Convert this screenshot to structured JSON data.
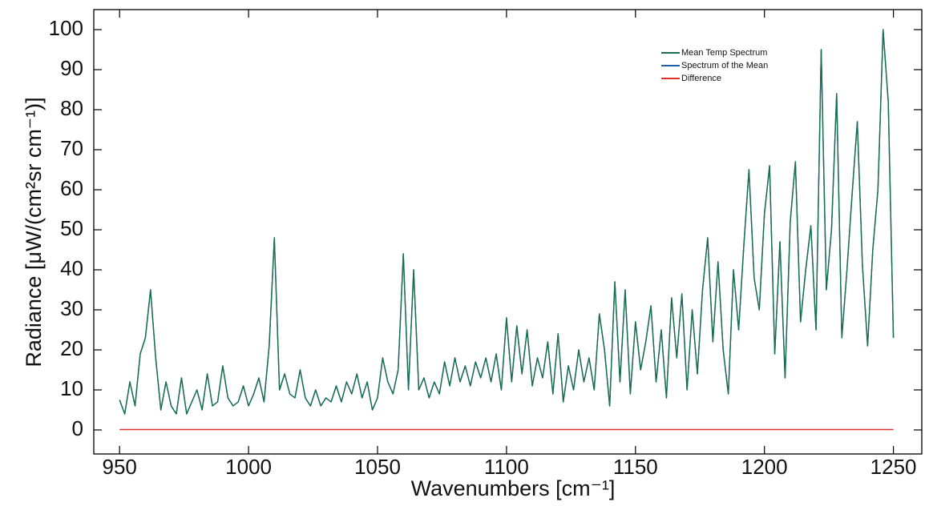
{
  "chart_data": {
    "type": "line",
    "xlabel": "Wavenumbers [cm⁻¹]",
    "ylabel": "Radiance [μW/(cm²sr cm⁻¹)]",
    "xlim": [
      940,
      1261
    ],
    "ylim": [
      -6,
      105
    ],
    "xticks": [
      950,
      1000,
      1050,
      1100,
      1150,
      1200,
      1250
    ],
    "yticks": [
      0,
      10,
      20,
      30,
      40,
      50,
      60,
      70,
      80,
      90,
      100
    ],
    "legend": "upper right",
    "x": [
      950,
      952,
      954,
      956,
      958,
      960,
      962,
      964,
      966,
      968,
      970,
      972,
      974,
      976,
      978,
      980,
      982,
      984,
      986,
      988,
      990,
      992,
      994,
      996,
      998,
      1000,
      1002,
      1004,
      1006,
      1008,
      1010,
      1012,
      1014,
      1016,
      1018,
      1020,
      1022,
      1024,
      1026,
      1028,
      1030,
      1032,
      1034,
      1036,
      1038,
      1040,
      1042,
      1044,
      1046,
      1048,
      1050,
      1052,
      1054,
      1056,
      1058,
      1060,
      1062,
      1064,
      1066,
      1068,
      1070,
      1072,
      1074,
      1076,
      1078,
      1080,
      1082,
      1084,
      1086,
      1088,
      1090,
      1092,
      1094,
      1096,
      1098,
      1100,
      1102,
      1104,
      1106,
      1108,
      1110,
      1112,
      1114,
      1116,
      1118,
      1120,
      1122,
      1124,
      1126,
      1128,
      1130,
      1132,
      1134,
      1136,
      1138,
      1140,
      1142,
      1144,
      1146,
      1148,
      1150,
      1152,
      1154,
      1156,
      1158,
      1160,
      1162,
      1164,
      1166,
      1168,
      1170,
      1172,
      1174,
      1176,
      1178,
      1180,
      1182,
      1184,
      1186,
      1188,
      1190,
      1192,
      1194,
      1196,
      1198,
      1200,
      1202,
      1204,
      1206,
      1208,
      1210,
      1212,
      1214,
      1216,
      1218,
      1220,
      1222,
      1224,
      1226,
      1228,
      1230,
      1232,
      1234,
      1236,
      1238,
      1240,
      1242,
      1244,
      1246,
      1248,
      1250
    ],
    "series": [
      {
        "name": "Mean Temp Spectrum",
        "color": "#1a6e4e",
        "values": [
          7.5,
          4,
          12,
          6,
          19,
          23,
          35,
          18,
          5,
          12,
          6,
          4,
          13,
          4,
          7,
          10,
          5,
          14,
          6,
          7,
          16,
          8,
          6,
          7,
          11,
          6,
          9,
          13,
          7,
          21,
          48,
          10,
          14,
          9,
          8,
          15,
          8,
          6,
          10,
          6,
          8,
          7,
          11,
          7,
          12,
          9,
          14,
          8,
          12,
          5,
          8,
          18,
          12,
          9,
          15,
          44,
          10,
          40,
          10,
          13,
          8,
          12,
          9,
          17,
          11,
          18,
          12,
          16,
          11,
          17,
          13,
          18,
          12,
          19,
          10,
          28,
          12,
          26,
          14,
          25,
          11,
          18,
          13,
          22,
          9,
          24,
          7,
          16,
          10,
          20,
          12,
          18,
          10,
          29,
          20,
          6,
          37,
          12,
          35,
          9,
          27,
          15,
          22,
          31,
          12,
          25,
          8,
          33,
          18,
          34,
          10,
          30,
          14,
          35,
          48,
          22,
          42,
          20,
          9,
          40,
          25,
          46,
          65,
          38,
          30,
          54,
          66,
          19,
          47,
          13,
          52,
          67,
          27,
          40,
          51,
          25,
          95,
          35,
          50,
          84,
          23,
          40,
          59,
          77,
          41,
          21,
          45,
          60,
          100,
          82,
          23
        ]
      },
      {
        "name": "Spectrum of the Mean",
        "color": "#1f5fa8",
        "values": [
          7.5,
          4,
          12,
          6,
          19,
          23,
          35,
          18,
          5,
          12,
          6,
          4,
          13,
          4,
          7,
          10,
          5,
          14,
          6,
          7,
          16,
          8,
          6,
          7,
          11,
          6,
          9,
          13,
          7,
          21,
          48,
          10,
          14,
          9,
          8,
          15,
          8,
          6,
          10,
          6,
          8,
          7,
          11,
          7,
          12,
          9,
          14,
          8,
          12,
          5,
          8,
          18,
          12,
          9,
          15,
          44,
          10,
          40,
          10,
          13,
          8,
          12,
          9,
          17,
          11,
          18,
          12,
          16,
          11,
          17,
          13,
          18,
          12,
          19,
          10,
          28,
          12,
          26,
          14,
          25,
          11,
          18,
          13,
          22,
          9,
          24,
          7,
          16,
          10,
          20,
          12,
          18,
          10,
          29,
          20,
          6,
          37,
          12,
          35,
          9,
          27,
          15,
          22,
          31,
          12,
          25,
          8,
          33,
          18,
          34,
          10,
          30,
          14,
          35,
          48,
          22,
          42,
          20,
          9,
          40,
          25,
          46,
          65,
          38,
          30,
          54,
          66,
          19,
          47,
          13,
          52,
          67,
          27,
          40,
          51,
          25,
          95,
          35,
          50,
          84,
          23,
          40,
          59,
          77,
          41,
          21,
          45,
          60,
          100,
          82,
          23
        ]
      },
      {
        "name": "Difference",
        "color": "#e0302a",
        "values": [
          0.1,
          0.1,
          0.1,
          0.1,
          0.1,
          0.1,
          0.1,
          0.1,
          0.1,
          0.1,
          0.1,
          0.1,
          0.1,
          0.1,
          0.1,
          0.1,
          0.1,
          0.1,
          0.1,
          0.1,
          0.1,
          0.1,
          0.1,
          0.1,
          0.1,
          0.1,
          0.1,
          0.1,
          0.1,
          0.1,
          0.1,
          0.1,
          0.1,
          0.1,
          0.1,
          0.1,
          0.1,
          0.1,
          0.1,
          0.1,
          0.1,
          0.1,
          0.1,
          0.1,
          0.1,
          0.1,
          0.1,
          0.1,
          0.1,
          0.1,
          0.1,
          0.1,
          0.1,
          0.1,
          0.1,
          0.1,
          0.1,
          0.1,
          0.1,
          0.1,
          0.1,
          0.1,
          0.1,
          0.1,
          0.1,
          0.1,
          0.1,
          0.1,
          0.1,
          0.1,
          0.1,
          0.1,
          0.1,
          0.1,
          0.1,
          0.1,
          0.1,
          0.1,
          0.1,
          0.1,
          0.1,
          0.1,
          0.1,
          0.1,
          0.1,
          0.1,
          0.1,
          0.1,
          0.1,
          0.1,
          0.1,
          0.1,
          0.1,
          0.1,
          0.1,
          0.1,
          0.1,
          0.1,
          0.1,
          0.1,
          0.1,
          0.1,
          0.1,
          0.1,
          0.1,
          0.1,
          0.1,
          0.1,
          0.1,
          0.1,
          0.1,
          0.1,
          0.1,
          0.1,
          0.1,
          0.1,
          0.1,
          0.1,
          0.1,
          0.1,
          0.1,
          0.1,
          0.1,
          0.1,
          0.1,
          0.1,
          0.1,
          0.1,
          0.1,
          0.1,
          0.1,
          0.1,
          0.1,
          0.1,
          0.1,
          0.1,
          0.1,
          0.1,
          0.1,
          0.1,
          0.1,
          0.1,
          0.1,
          0.1,
          0.1,
          0.1,
          0.1,
          0.1,
          0.1,
          0.1,
          0.1
        ]
      }
    ]
  }
}
